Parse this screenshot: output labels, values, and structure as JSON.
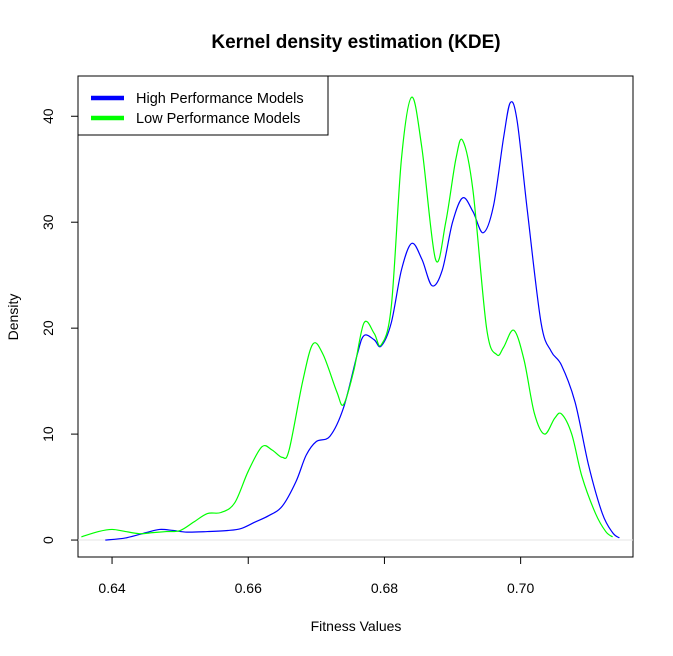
{
  "chart_data": {
    "type": "line",
    "title": "Kernel density estimation (KDE)",
    "xlabel": "Fitness Values",
    "ylabel": "Density",
    "xlim": [
      0.635,
      0.7165
    ],
    "ylim": [
      -1.6,
      43.8
    ],
    "x_ticks": [
      0.64,
      0.66,
      0.68,
      0.7
    ],
    "x_tick_labels": [
      "0.64",
      "0.66",
      "0.68",
      "0.70"
    ],
    "y_ticks": [
      0,
      10,
      20,
      30,
      40
    ],
    "y_tick_labels": [
      "0",
      "10",
      "20",
      "30",
      "40"
    ],
    "grid": false,
    "legend_position": "top-left",
    "series": [
      {
        "name": "High Performance Models",
        "color": "#0000ff",
        "points": [
          [
            0.639,
            0.0
          ],
          [
            0.642,
            0.2
          ],
          [
            0.645,
            0.7
          ],
          [
            0.647,
            1.0
          ],
          [
            0.649,
            0.9
          ],
          [
            0.651,
            0.75
          ],
          [
            0.654,
            0.8
          ],
          [
            0.657,
            0.9
          ],
          [
            0.659,
            1.1
          ],
          [
            0.661,
            1.7
          ],
          [
            0.663,
            2.3
          ],
          [
            0.665,
            3.2
          ],
          [
            0.667,
            5.5
          ],
          [
            0.6685,
            8.0
          ],
          [
            0.67,
            9.3
          ],
          [
            0.672,
            9.8
          ],
          [
            0.674,
            12.5
          ],
          [
            0.676,
            17.5
          ],
          [
            0.677,
            19.3
          ],
          [
            0.6785,
            18.9
          ],
          [
            0.6795,
            18.3
          ],
          [
            0.681,
            20.5
          ],
          [
            0.6825,
            25.5
          ],
          [
            0.684,
            28.0
          ],
          [
            0.6855,
            26.5
          ],
          [
            0.687,
            24.0
          ],
          [
            0.6885,
            25.5
          ],
          [
            0.69,
            30.0
          ],
          [
            0.6915,
            32.3
          ],
          [
            0.693,
            31.0
          ],
          [
            0.6945,
            29.0
          ],
          [
            0.696,
            31.5
          ],
          [
            0.6975,
            38.0
          ],
          [
            0.6985,
            41.3
          ],
          [
            0.6995,
            39.5
          ],
          [
            0.701,
            31.0
          ],
          [
            0.703,
            20.5
          ],
          [
            0.7045,
            17.8
          ],
          [
            0.706,
            16.5
          ],
          [
            0.708,
            13.0
          ],
          [
            0.71,
            7.0
          ],
          [
            0.712,
            2.5
          ],
          [
            0.7135,
            0.7
          ],
          [
            0.7145,
            0.2
          ]
        ]
      },
      {
        "name": "Low Performance Models",
        "color": "#00ff00",
        "points": [
          [
            0.6355,
            0.3
          ],
          [
            0.638,
            0.8
          ],
          [
            0.64,
            1.0
          ],
          [
            0.642,
            0.8
          ],
          [
            0.644,
            0.6
          ],
          [
            0.646,
            0.7
          ],
          [
            0.648,
            0.8
          ],
          [
            0.65,
            0.9
          ],
          [
            0.652,
            1.7
          ],
          [
            0.654,
            2.5
          ],
          [
            0.656,
            2.6
          ],
          [
            0.658,
            3.5
          ],
          [
            0.66,
            6.5
          ],
          [
            0.662,
            8.8
          ],
          [
            0.6635,
            8.5
          ],
          [
            0.665,
            7.8
          ],
          [
            0.666,
            8.5
          ],
          [
            0.668,
            15.0
          ],
          [
            0.6695,
            18.5
          ],
          [
            0.671,
            17.5
          ],
          [
            0.673,
            14.0
          ],
          [
            0.674,
            12.8
          ],
          [
            0.6755,
            16.0
          ],
          [
            0.677,
            20.5
          ],
          [
            0.6785,
            19.5
          ],
          [
            0.6795,
            18.4
          ],
          [
            0.681,
            22.0
          ],
          [
            0.6825,
            36.0
          ],
          [
            0.684,
            41.8
          ],
          [
            0.6855,
            37.0
          ],
          [
            0.6875,
            26.5
          ],
          [
            0.689,
            30.0
          ],
          [
            0.6905,
            36.0
          ],
          [
            0.6915,
            37.7
          ],
          [
            0.693,
            33.0
          ],
          [
            0.695,
            20.0
          ],
          [
            0.6965,
            17.5
          ],
          [
            0.6975,
            18.2
          ],
          [
            0.699,
            19.8
          ],
          [
            0.7005,
            17.0
          ],
          [
            0.702,
            12.0
          ],
          [
            0.7035,
            10.0
          ],
          [
            0.705,
            11.5
          ],
          [
            0.706,
            11.9
          ],
          [
            0.7075,
            10.0
          ],
          [
            0.709,
            6.0
          ],
          [
            0.711,
            2.5
          ],
          [
            0.7125,
            0.8
          ],
          [
            0.7135,
            0.3
          ]
        ]
      }
    ]
  }
}
